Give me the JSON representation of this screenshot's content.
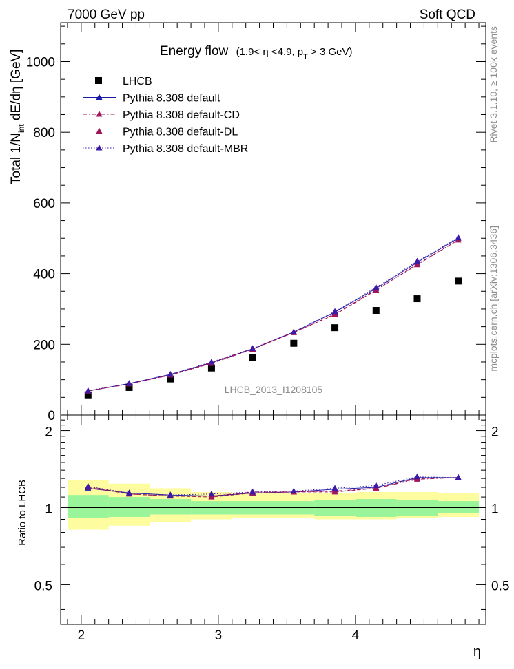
{
  "header": {
    "left": "7000 GeV pp",
    "right": "Soft QCD"
  },
  "side_text": {
    "upper": "Rivet 3.1.10, ≥ 100k events",
    "lower": "mcplots.cern.ch [arXiv:1306.3436]"
  },
  "chart_data": [
    {
      "type": "scatter",
      "title": "Energy flow",
      "title_note": "(1.9< η <4.9, p",
      "title_note_sub": "T",
      "title_note_end": " > 3 GeV)",
      "ylabel": "Total 1/N",
      "ylabel_sub": "int",
      "ylabel_end": " dE/dη [GeV]",
      "watermark": "LHCB_2013_I1208105",
      "xlim": [
        1.85,
        4.95
      ],
      "ylim": [
        0,
        1110
      ],
      "yticks": [
        "0",
        "200",
        "400",
        "600",
        "800",
        "1000"
      ],
      "x": [
        2.05,
        2.35,
        2.65,
        2.95,
        3.25,
        3.55,
        3.85,
        4.15,
        4.45,
        4.75
      ],
      "series": [
        {
          "name": "LHCB",
          "marker": "square",
          "color": "#000000",
          "values": [
            57,
            78,
            102,
            133,
            163,
            203,
            247,
            296,
            329,
            379
          ]
        },
        {
          "name": "Pythia 8.308 default",
          "marker": "triangle",
          "color": "#1a1aa8",
          "dash": "solid",
          "values": [
            68,
            89,
            115,
            148,
            187,
            235,
            291,
            358,
            432,
            500
          ]
        },
        {
          "name": "Pythia 8.308 default-CD",
          "marker": "triangle",
          "color": "#a0155a",
          "dash": "dashdot",
          "values": [
            68,
            88,
            113,
            148,
            188,
            233,
            286,
            354,
            425,
            495
          ]
        },
        {
          "name": "Pythia 8.308 default-DL",
          "marker": "triangle",
          "color": "#a0155a",
          "dash": "dashed",
          "values": [
            68,
            88,
            113,
            146,
            186,
            234,
            284,
            353,
            427,
            495
          ]
        },
        {
          "name": "Pythia 8.308 default-MBR",
          "marker": "triangle",
          "color": "#3c1aa8",
          "dash": "dotted",
          "values": [
            69,
            89,
            115,
            150,
            188,
            235,
            293,
            361,
            435,
            502
          ]
        }
      ]
    },
    {
      "type": "line",
      "ylabel": "Ratio to LHCB",
      "xlabel": "η",
      "xlim": [
        1.85,
        4.95
      ],
      "ylim": [
        0.35,
        2.3
      ],
      "xticks": [
        "2",
        "3",
        "4"
      ],
      "yticks": [
        "0.5",
        "1",
        "2"
      ],
      "bands": {
        "edges": [
          1.9,
          2.2,
          2.5,
          2.8,
          3.1,
          3.4,
          3.7,
          4.0,
          4.3,
          4.6,
          4.9
        ],
        "green_lo": [
          0.91,
          0.92,
          0.94,
          0.94,
          0.94,
          0.94,
          0.93,
          0.92,
          0.93,
          0.95
        ],
        "green_hi": [
          1.12,
          1.1,
          1.08,
          1.06,
          1.06,
          1.06,
          1.07,
          1.08,
          1.07,
          1.06
        ],
        "yellow_lo": [
          0.82,
          0.85,
          0.88,
          0.9,
          0.91,
          0.91,
          0.9,
          0.9,
          0.91,
          0.92
        ],
        "yellow_hi": [
          1.28,
          1.24,
          1.19,
          1.15,
          1.14,
          1.14,
          1.14,
          1.15,
          1.15,
          1.14
        ]
      },
      "series": [
        {
          "name": "Pythia 8.308 default",
          "values": [
            1.19,
            1.14,
            1.12,
            1.11,
            1.14,
            1.15,
            1.18,
            1.2,
            1.31,
            1.31
          ]
        },
        {
          "name": "Pythia 8.308 default-CD",
          "values": [
            1.21,
            1.13,
            1.11,
            1.11,
            1.15,
            1.15,
            1.16,
            1.19,
            1.29,
            1.31
          ]
        },
        {
          "name": "Pythia 8.308 default-DL",
          "values": [
            1.2,
            1.13,
            1.11,
            1.1,
            1.14,
            1.15,
            1.15,
            1.19,
            1.3,
            1.31
          ]
        },
        {
          "name": "Pythia 8.308 default-MBR",
          "values": [
            1.21,
            1.14,
            1.12,
            1.13,
            1.15,
            1.16,
            1.19,
            1.22,
            1.32,
            1.31
          ]
        }
      ]
    }
  ]
}
